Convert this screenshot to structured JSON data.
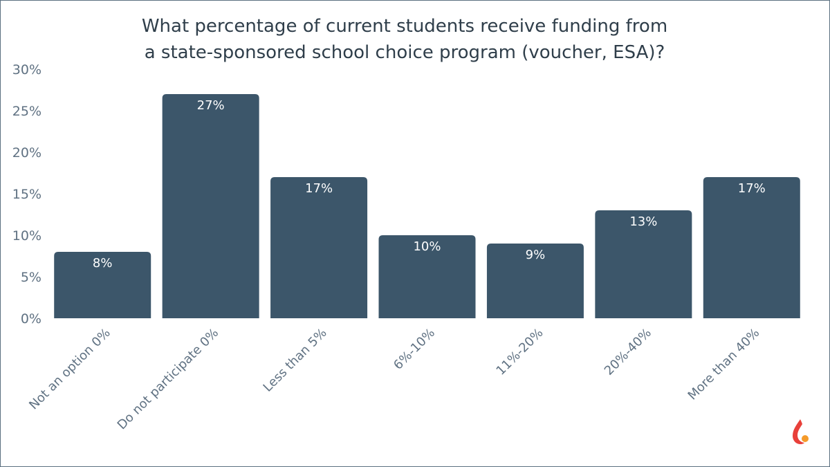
{
  "chart_data": {
    "type": "bar",
    "title_lines": [
      "What percentage of current students receive funding from",
      "a state-sponsored school choice program (voucher, ESA)?"
    ],
    "categories": [
      "Not an option 0%",
      "Do not participate 0%",
      "Less than 5%",
      "6%-10%",
      "11%-20%",
      "20%-40%",
      "More than 40%"
    ],
    "values": [
      8,
      27,
      17,
      10,
      9,
      13,
      17
    ],
    "data_labels": [
      "8%",
      "27%",
      "17%",
      "10%",
      "9%",
      "13%",
      "17%"
    ],
    "y_ticks": [
      0,
      5,
      10,
      15,
      20,
      25,
      30
    ],
    "y_tick_labels": [
      "0%",
      "5%",
      "10%",
      "15%",
      "20%",
      "25%",
      "30%"
    ],
    "ylim": [
      0,
      30
    ],
    "xlabel": "",
    "ylabel": "",
    "grid": false,
    "legend": "none",
    "colors": {
      "bar": "#3c566a",
      "text": "#5f7182",
      "title": "#2f3e4a",
      "logo_flame": "#e8403a",
      "logo_dot": "#f59b2a"
    }
  },
  "logo": {
    "name": "flame-logo-icon"
  }
}
